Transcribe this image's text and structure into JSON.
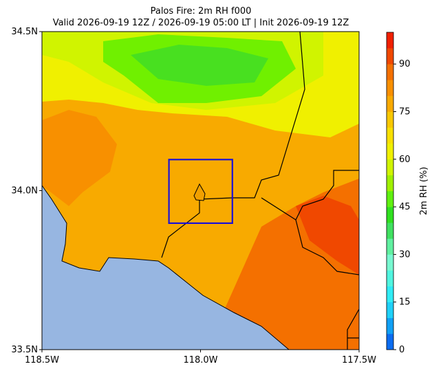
{
  "title": "Palos Fire: 2m RH f000",
  "subtitle": "Valid 2026-09-19 12Z / 2026-09-19 05:00 LT | Init 2026-09-19 12Z",
  "map": {
    "xlim": [
      -118.5,
      -117.5
    ],
    "ylim": [
      33.5,
      34.5
    ],
    "xticks": [
      {
        "value": -118.5,
        "label": "118.5W"
      },
      {
        "value": -118,
        "label": "118.0W"
      },
      {
        "value": -117.5,
        "label": "117.5W"
      }
    ],
    "yticks": [
      {
        "value": 33.5,
        "label": "33.5N"
      },
      {
        "value": 34,
        "label": "34.0N"
      },
      {
        "value": 34.5,
        "label": "34.5N"
      }
    ]
  },
  "colorbar": {
    "label": "2m RH (%)",
    "lim": [
      0,
      100
    ],
    "ticks": [
      0,
      15,
      30,
      45,
      60,
      75,
      90
    ],
    "colors": [
      "#0a6cf0",
      "#10a0f5",
      "#1fd0f8",
      "#30ecf5",
      "#50f5e0",
      "#78f8d0",
      "#60f0a0",
      "#40e060",
      "#30e020",
      "#60f010",
      "#a0f000",
      "#d0f400",
      "#f0f000",
      "#f8e000",
      "#f8c800",
      "#f8aa00",
      "#f89000",
      "#f47000",
      "#f04800",
      "#f02000"
    ]
  }
}
